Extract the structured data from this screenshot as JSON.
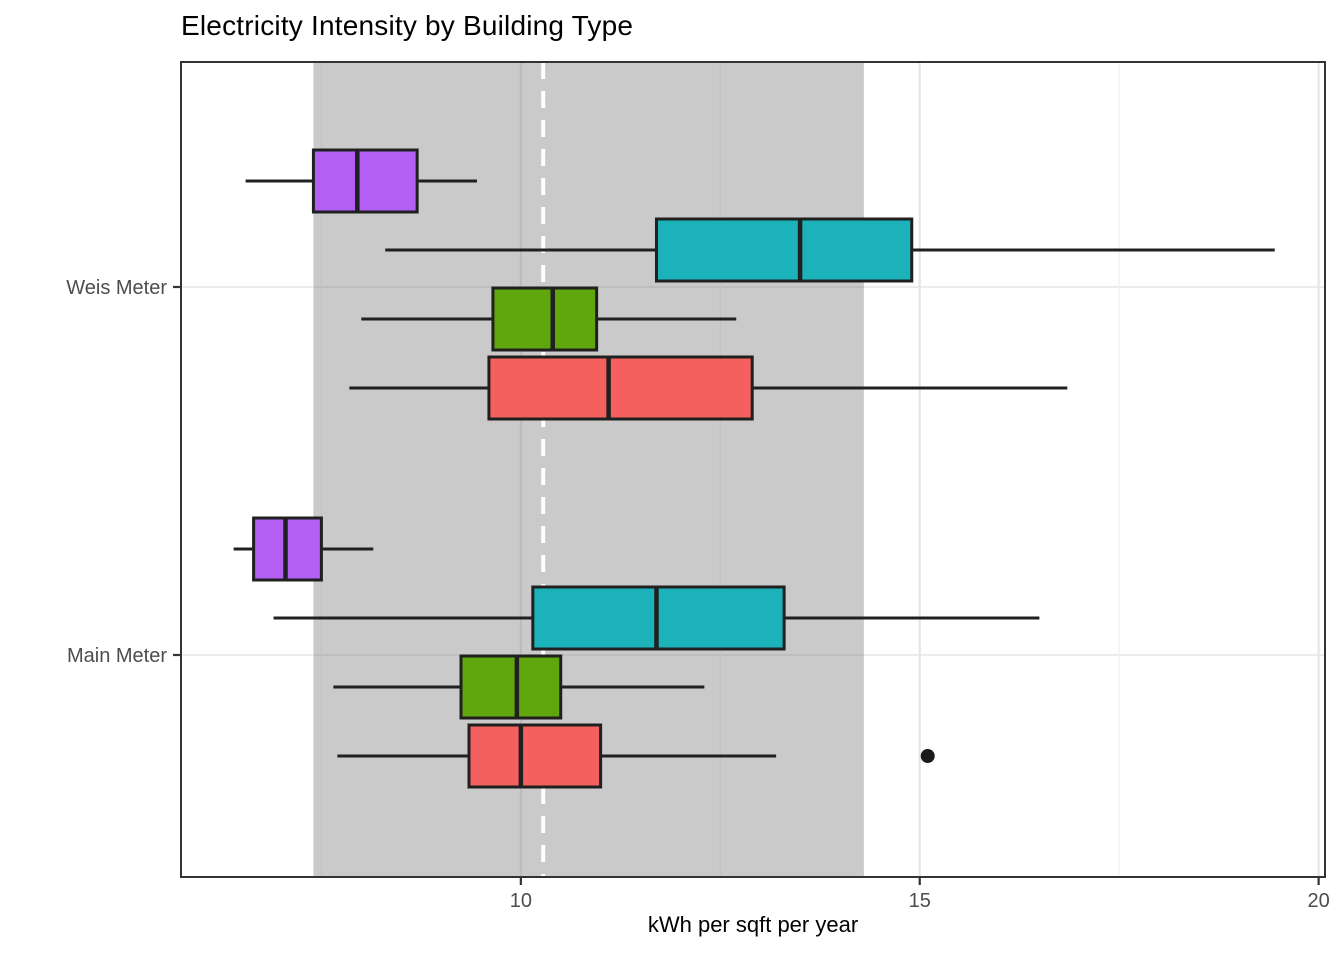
{
  "chart_data": {
    "type": "boxplot",
    "orientation": "horizontal",
    "title": "Electricity Intensity by Building Type",
    "xlabel": "kWh per sqft per year",
    "xlim": [
      5.74,
      20.08
    ],
    "x_ticks": [
      10,
      15,
      20
    ],
    "x_minor_ticks": [
      7.5,
      12.5,
      17.5
    ],
    "categories": [
      "Weis Meter",
      "Main Meter"
    ],
    "legend": "none",
    "reference_band": {
      "from": 7.4,
      "to": 14.3,
      "fill": "#808080",
      "opacity": 0.42
    },
    "reference_line": {
      "value": 10.28,
      "color": "#FFFFFF",
      "style": "dashed"
    },
    "groups": [
      {
        "category": "Weis Meter",
        "boxes": [
          {
            "series": "purple",
            "fill": "#B45FF3",
            "low": 6.55,
            "q1": 7.4,
            "median": 7.95,
            "q3": 8.7,
            "high": 9.45,
            "outliers": []
          },
          {
            "series": "teal",
            "fill": "#1BB3B9",
            "low": 8.3,
            "q1": 11.7,
            "median": 13.5,
            "q3": 14.9,
            "high": 19.45,
            "outliers": []
          },
          {
            "series": "green",
            "fill": "#60A60D",
            "low": 8.0,
            "q1": 9.65,
            "median": 10.4,
            "q3": 10.95,
            "high": 12.7,
            "outliers": []
          },
          {
            "series": "red",
            "fill": "#F4605D",
            "low": 7.85,
            "q1": 9.6,
            "median": 11.1,
            "q3": 12.9,
            "high": 16.85,
            "outliers": []
          }
        ]
      },
      {
        "category": "Main Meter",
        "boxes": [
          {
            "series": "purple",
            "fill": "#B45FF3",
            "low": 6.4,
            "q1": 6.65,
            "median": 7.05,
            "q3": 7.5,
            "high": 8.15,
            "outliers": []
          },
          {
            "series": "teal",
            "fill": "#1BB3B9",
            "low": 6.9,
            "q1": 10.15,
            "median": 11.7,
            "q3": 13.3,
            "high": 16.5,
            "outliers": []
          },
          {
            "series": "green",
            "fill": "#60A60D",
            "low": 7.65,
            "q1": 9.25,
            "median": 9.95,
            "q3": 10.5,
            "high": 12.3,
            "outliers": []
          },
          {
            "series": "red",
            "fill": "#F4605D",
            "low": 7.7,
            "q1": 9.35,
            "median": 10.0,
            "q3": 11.0,
            "high": 13.2,
            "outliers": [
              15.1
            ]
          }
        ]
      }
    ],
    "styles": {
      "box_border": "#202020",
      "median_color": "#202020",
      "whisker_color": "#202020",
      "outlier_color": "#1A1A1A",
      "axis_text": "#4D4D4D",
      "panel_border": "#333333",
      "grid_major": "#E5E5E5",
      "grid_minor": "#F2F2F2",
      "panel_background": "#FFFFFF"
    }
  }
}
